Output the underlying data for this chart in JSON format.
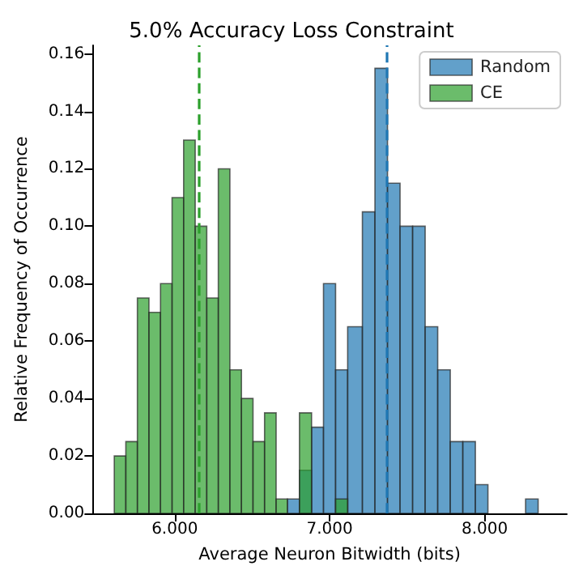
{
  "chart_data": {
    "type": "histogram",
    "title": "5.0% Accuracy Loss Constraint",
    "xlabel": "Average Neuron Bitwidth (bits)",
    "ylabel": "Relative Frequency of Occurrence",
    "bins": [
      5.61,
      5.6846,
      5.7592,
      5.8338,
      5.9084,
      5.983,
      6.0576,
      6.1322,
      6.2068,
      6.2814,
      6.356,
      6.4306,
      6.5052,
      6.5798,
      6.6544,
      6.727,
      6.805,
      6.883,
      6.96,
      7.038,
      7.116,
      7.211,
      7.292,
      7.373,
      7.454,
      7.535,
      7.616,
      7.697,
      7.778,
      7.859,
      7.94,
      8.021,
      8.264,
      8.345
    ],
    "series": [
      {
        "name": "Random",
        "color": "#1f77b4",
        "values": [
          null,
          null,
          null,
          null,
          null,
          null,
          null,
          null,
          null,
          null,
          null,
          null,
          null,
          null,
          null,
          0.005,
          0.015,
          0.03,
          0.08,
          0.05,
          0.065,
          0.105,
          0.155,
          0.115,
          0.1,
          0.1,
          0.065,
          0.05,
          0.025,
          0.025,
          0.01,
          0,
          0.005
        ]
      },
      {
        "name": "CE",
        "color": "#2ca02c",
        "values": [
          0.02,
          0.025,
          0.075,
          0.07,
          0.08,
          0.11,
          0.13,
          0.1,
          0.075,
          0.12,
          0.05,
          0.04,
          0.025,
          0.035,
          0.005,
          0,
          0.035,
          0,
          0,
          0.005,
          null,
          null,
          null,
          null,
          null,
          null,
          null,
          null,
          null,
          null,
          null,
          null,
          null
        ]
      }
    ],
    "ref_lines": [
      {
        "axis": "x",
        "value": 7.37,
        "color": "#1f77b4",
        "line_style": "dashed"
      },
      {
        "axis": "x",
        "value": 6.16,
        "color": "#2ca02c",
        "line_style": "dashed"
      }
    ],
    "xlim": [
      5.47,
      8.53
    ],
    "xticks": [
      {
        "value": 6,
        "label": "6.000"
      },
      {
        "value": 7,
        "label": "7.000"
      },
      {
        "value": 8,
        "label": "8.000"
      }
    ],
    "ylim": [
      0,
      0.163
    ],
    "yticks": [
      {
        "value": 0,
        "label": "0.00"
      },
      {
        "value": 0.02,
        "label": "0.02"
      },
      {
        "value": 0.04,
        "label": "0.04"
      },
      {
        "value": 0.06,
        "label": "0.06"
      },
      {
        "value": 0.08,
        "label": "0.08"
      },
      {
        "value": 0.1,
        "label": "0.10"
      },
      {
        "value": 0.12,
        "label": "0.12"
      },
      {
        "value": 0.14,
        "label": "0.14"
      },
      {
        "value": 0.16,
        "label": "0.16"
      }
    ],
    "grid": false,
    "legend": "top right"
  }
}
